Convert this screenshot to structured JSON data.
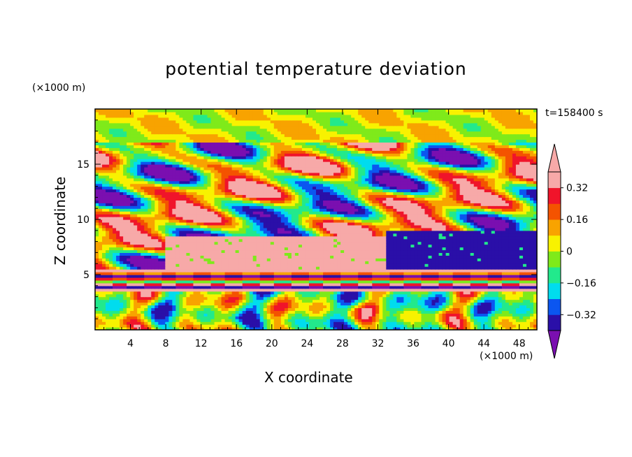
{
  "chart_data": {
    "type": "heatmap",
    "title": "potential temperature deviation",
    "xlabel": "X coordinate",
    "ylabel": "Z coordinate",
    "x_unit_label": "(×1000 m)",
    "y_unit_label": "(×1000 m)",
    "time_label": "t=158400 s",
    "xlim": [
      0,
      50
    ],
    "ylim": [
      0,
      20
    ],
    "x_ticks": [
      4,
      8,
      12,
      16,
      20,
      24,
      28,
      32,
      36,
      40,
      44,
      48
    ],
    "x_tick_labels": [
      "4",
      "8",
      "12",
      "16",
      "20",
      "24",
      "28",
      "32",
      "36",
      "40",
      "44",
      "48"
    ],
    "y_ticks": [
      5,
      10,
      15
    ],
    "y_tick_labels": [
      "5",
      "10",
      "15"
    ],
    "colorbar": {
      "levels": [
        -0.4,
        -0.32,
        -0.24,
        -0.16,
        -0.08,
        0,
        0.08,
        0.16,
        0.24,
        0.32,
        0.4
      ],
      "tick_values": [
        0.32,
        0.16,
        0,
        -0.16,
        -0.32
      ],
      "tick_labels": [
        "0.32",
        "0.16",
        "0",
        "−0.16",
        "−0.32"
      ],
      "colors": [
        "#7a0fb0",
        "#2a0fa8",
        "#0b56f0",
        "#00dcee",
        "#22e98c",
        "#7fea1a",
        "#f8f200",
        "#f8a300",
        "#f45300",
        "#f0142a",
        "#f7a9a8"
      ],
      "extend": "both"
    },
    "features": [
      {
        "region": "lower layer",
        "x_range": [
          0,
          50
        ],
        "z_range": [
          0,
          3.5
        ],
        "value_range": [
          -0.4,
          0.32
        ],
        "pattern": "vertical plumes"
      },
      {
        "region": "stable band",
        "x_range": [
          0,
          50
        ],
        "z_range": [
          3.5,
          5.5
        ],
        "value_range": [
          -0.4,
          0.4
        ],
        "pattern": "horizontal stripes"
      },
      {
        "region": "warm anomaly",
        "x_range": [
          8,
          33
        ],
        "z_range": [
          5.5,
          8.5
        ],
        "value": 0.4
      },
      {
        "region": "cold anomaly",
        "x_range": [
          33,
          50
        ],
        "z_range": [
          5.5,
          9
        ],
        "value": -0.4
      },
      {
        "region": "upper layer",
        "x_range": [
          0,
          50
        ],
        "z_range": [
          9,
          17
        ],
        "value_range": [
          -0.4,
          0.4
        ],
        "pattern": "layered blobs"
      },
      {
        "region": "top",
        "x_range": [
          0,
          50
        ],
        "z_range": [
          17,
          20
        ],
        "value_range": [
          -0.08,
          0.16
        ]
      }
    ]
  }
}
